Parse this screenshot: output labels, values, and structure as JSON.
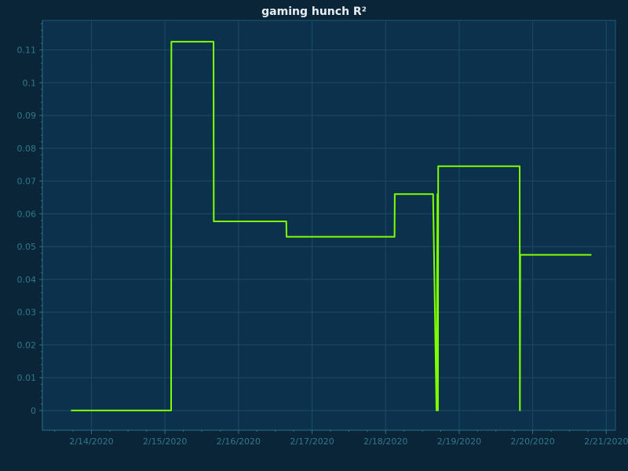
{
  "chart_data": {
    "type": "line",
    "title": "gaming hunch R²",
    "xlabel": "",
    "ylabel": "",
    "x_type": "date",
    "xlim": [
      "2020-02-13T08:00",
      "2020-02-21T03:00"
    ],
    "ylim": [
      -0.006,
      0.119
    ],
    "x_ticks": [
      "2020-02-14",
      "2020-02-15",
      "2020-02-16",
      "2020-02-17",
      "2020-02-18",
      "2020-02-19",
      "2020-02-20",
      "2020-02-21"
    ],
    "x_tick_labels": [
      "2/14/2020",
      "2/15/2020",
      "2/16/2020",
      "2/17/2020",
      "2/18/2020",
      "2/19/2020",
      "2/20/2020",
      "2/21/2020"
    ],
    "y_ticks": [
      0,
      0.01,
      0.02,
      0.03,
      0.04,
      0.05,
      0.06,
      0.07,
      0.08,
      0.09,
      0.1,
      0.11
    ],
    "y_tick_labels": [
      "0",
      "0.01",
      "0.02",
      "0.03",
      "0.04",
      "0.05",
      "0.06",
      "0.07",
      "0.08",
      "0.09",
      "0.1",
      "0.11"
    ],
    "grid": true,
    "colors": {
      "background": "#0b2538",
      "plot_background": "#0c314c",
      "line": "#7fff00"
    },
    "series": [
      {
        "points": [
          {
            "x": "2020-02-13T17:20",
            "y": 0
          },
          {
            "x": "2020-02-15T02:00",
            "y": 0
          },
          {
            "x": "2020-02-15T02:05",
            "y": 0.1125
          },
          {
            "x": "2020-02-15T15:50",
            "y": 0.1125
          },
          {
            "x": "2020-02-15T15:55",
            "y": 0.0577
          },
          {
            "x": "2020-02-16T15:35",
            "y": 0.0577
          },
          {
            "x": "2020-02-16T15:40",
            "y": 0.053
          },
          {
            "x": "2020-02-18T02:55",
            "y": 0.053
          },
          {
            "x": "2020-02-18T03:00",
            "y": 0.066
          },
          {
            "x": "2020-02-18T15:30",
            "y": 0.066
          },
          {
            "x": "2020-02-18T16:35",
            "y": 0
          },
          {
            "x": "2020-02-18T16:55",
            "y": 0.066
          },
          {
            "x": "2020-02-18T17:05",
            "y": 0
          },
          {
            "x": "2020-02-18T17:10",
            "y": 0.0745
          },
          {
            "x": "2020-02-19T19:45",
            "y": 0.0745
          },
          {
            "x": "2020-02-19T19:50",
            "y": 0
          },
          {
            "x": "2020-02-19T19:55",
            "y": 0.0475
          },
          {
            "x": "2020-02-20T19:10",
            "y": 0.0475
          }
        ]
      }
    ]
  }
}
